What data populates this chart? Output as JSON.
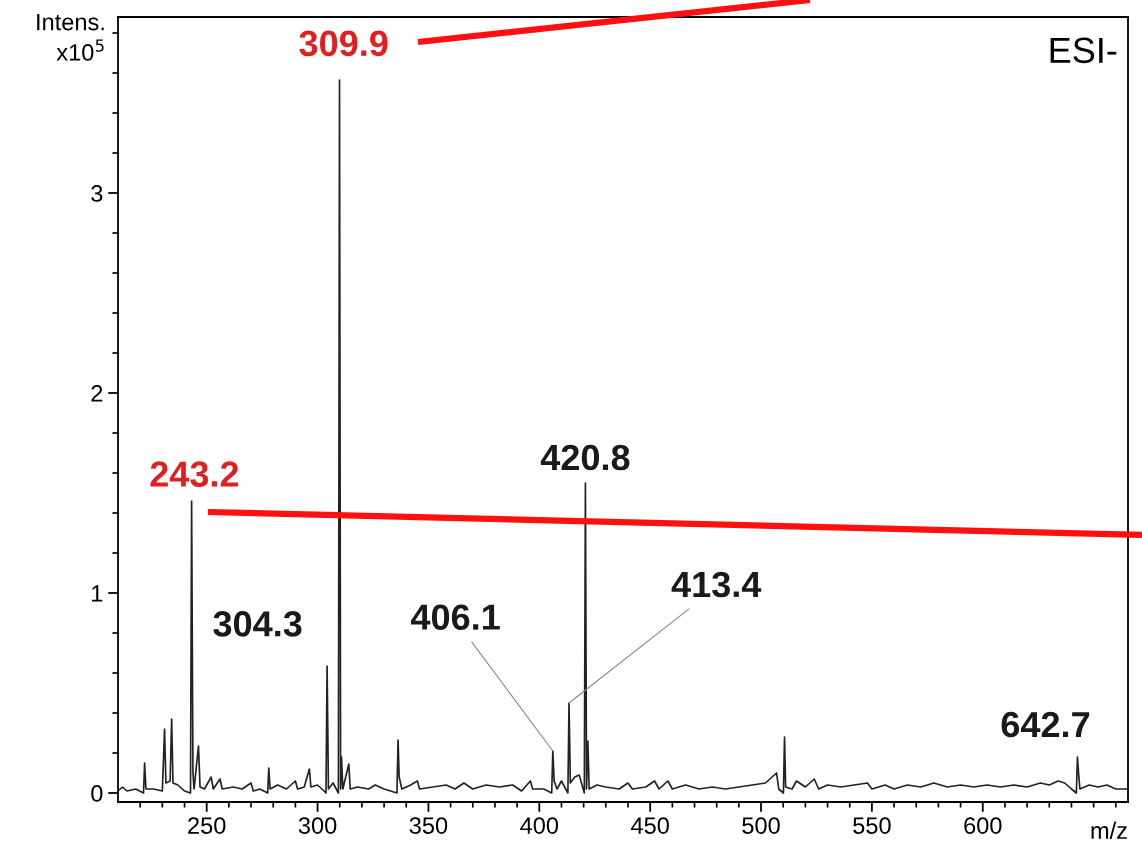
{
  "chart_data": {
    "type": "line",
    "xlabel": "m/z",
    "ylabel": "Intens.\nx10$^{5}$",
    "xlim": [
      210,
      665.5
    ],
    "ylim": [
      -0.045,
      3.88
    ],
    "xticks": [
      {
        "value": 220,
        "label": null
      },
      {
        "value": 230,
        "label": null
      },
      {
        "value": 240,
        "label": null
      },
      250,
      {
        "value": 260,
        "label": null
      },
      {
        "value": 270,
        "label": null
      },
      {
        "value": 280,
        "label": null
      },
      {
        "value": 290,
        "label": null
      },
      300,
      {
        "value": 310,
        "label": null
      },
      {
        "value": 320,
        "label": null
      },
      {
        "value": 330,
        "label": null
      },
      {
        "value": 340,
        "label": null
      },
      350,
      {
        "value": 360,
        "label": null
      },
      {
        "value": 370,
        "label": null
      },
      {
        "value": 380,
        "label": null
      },
      {
        "value": 390,
        "label": null
      },
      400,
      {
        "value": 410,
        "label": null
      },
      {
        "value": 420,
        "label": null
      },
      {
        "value": 430,
        "label": null
      },
      {
        "value": 440,
        "label": null
      },
      450,
      {
        "value": 460,
        "label": null
      },
      {
        "value": 470,
        "label": null
      },
      {
        "value": 480,
        "label": null
      },
      {
        "value": 490,
        "label": null
      },
      500,
      {
        "value": 510,
        "label": null
      },
      {
        "value": 520,
        "label": null
      },
      {
        "value": 530,
        "label": null
      },
      {
        "value": 540,
        "label": null
      },
      550,
      {
        "value": 560,
        "label": null
      },
      {
        "value": 570,
        "label": null
      },
      {
        "value": 580,
        "label": null
      },
      {
        "value": 590,
        "label": null
      },
      600,
      {
        "value": 610,
        "label": null
      },
      {
        "value": 620,
        "label": null
      },
      {
        "value": 630,
        "label": null
      },
      {
        "value": 640,
        "label": null
      },
      {
        "value": 650,
        "label": null
      },
      {
        "value": 660,
        "label": null
      }
    ],
    "yticks": [
      0,
      {
        "value": 0.2,
        "label": null
      },
      {
        "value": 0.4,
        "label": null
      },
      {
        "value": 0.6,
        "label": null
      },
      {
        "value": 0.8,
        "label": null
      },
      1,
      {
        "value": 1.2,
        "label": null
      },
      {
        "value": 1.4,
        "label": null
      },
      {
        "value": 1.6,
        "label": null
      },
      {
        "value": 1.8,
        "label": null
      },
      2,
      {
        "value": 2.2,
        "label": null
      },
      {
        "value": 2.4,
        "label": null
      },
      {
        "value": 2.6,
        "label": null
      },
      {
        "value": 2.8,
        "label": null
      },
      3,
      {
        "value": 3.2,
        "label": null
      },
      {
        "value": 3.4,
        "label": null
      },
      {
        "value": 3.6,
        "label": null
      },
      {
        "value": 3.8,
        "label": null
      }
    ],
    "grid": false,
    "marker": "none",
    "line_style": "solid",
    "series": [
      {
        "color": "#222222",
        "x": [
          210,
          212,
          214,
          218,
          221.5,
          222,
          222.6,
          226,
          230,
          231,
          231.6,
          233.5,
          234.2,
          234.8,
          237,
          240,
          242.7,
          243.2,
          243.8,
          244.3,
          246.3,
          247,
          249,
          252,
          253,
          256,
          257,
          262,
          266,
          270,
          271,
          274,
          277.5,
          278,
          278.6,
          282,
          286,
          290,
          291,
          294,
          296.3,
          297,
          300,
          302,
          303.8,
          304.3,
          304.9,
          307,
          309.4,
          309.9,
          310.4,
          310.8,
          311.4,
          314.1,
          314.7,
          318,
          323,
          326,
          330,
          335.8,
          336.3,
          336.8,
          338,
          342,
          345,
          346,
          352,
          358,
          362,
          366,
          370,
          376,
          382,
          388,
          392,
          396,
          397,
          402,
          405.6,
          406.1,
          406.7,
          408,
          410,
          412.9,
          413.4,
          414,
          416,
          418,
          420.3,
          420.8,
          421.3,
          421.9,
          422.5,
          426,
          430,
          436,
          440,
          442,
          448,
          452,
          454,
          458,
          460,
          466,
          472,
          478,
          484,
          490,
          496,
          502,
          507,
          508,
          510.1,
          510.6,
          511.1,
          514,
          516,
          520,
          524,
          526,
          530,
          536,
          542,
          548,
          550,
          556,
          560,
          566,
          572,
          578,
          584,
          590,
          596,
          602,
          608,
          614,
          620,
          626,
          630,
          634,
          637,
          640,
          642.2,
          642.7,
          643.2,
          643.8,
          648,
          652,
          656,
          660,
          665
        ],
        "values": [
          0.01,
          0.03,
          0.01,
          0.02,
          0.0,
          0.15,
          0.02,
          0.02,
          0.01,
          0.32,
          0.05,
          0.06,
          0.37,
          0.05,
          0.04,
          0.01,
          0.0,
          1.46,
          0.1,
          0.02,
          0.235,
          0.03,
          0.02,
          0.08,
          0.02,
          0.07,
          0.02,
          0.03,
          0.02,
          0.05,
          0.01,
          0.02,
          0.0,
          0.125,
          0.02,
          0.04,
          0.02,
          0.06,
          0.02,
          0.03,
          0.12,
          0.03,
          0.04,
          0.02,
          0.0,
          0.635,
          0.02,
          0.05,
          0.0,
          3.565,
          0.02,
          0.18,
          0.02,
          0.145,
          0.02,
          0.03,
          0.02,
          0.04,
          0.02,
          0.0,
          0.265,
          0.08,
          0.02,
          0.04,
          0.06,
          0.02,
          0.03,
          0.04,
          0.02,
          0.05,
          0.02,
          0.04,
          0.03,
          0.04,
          0.01,
          0.06,
          0.02,
          0.02,
          0.0,
          0.21,
          0.06,
          0.02,
          0.06,
          0.0,
          0.45,
          0.05,
          0.08,
          0.09,
          0.0,
          1.55,
          0.02,
          0.26,
          0.02,
          0.04,
          0.03,
          0.02,
          0.05,
          0.02,
          0.03,
          0.06,
          0.02,
          0.06,
          0.02,
          0.04,
          0.02,
          0.03,
          0.02,
          0.03,
          0.04,
          0.05,
          0.1,
          0.02,
          0.0,
          0.28,
          0.03,
          0.02,
          0.06,
          0.03,
          0.07,
          0.02,
          0.04,
          0.03,
          0.04,
          0.05,
          0.02,
          0.04,
          0.02,
          0.04,
          0.03,
          0.05,
          0.03,
          0.04,
          0.03,
          0.04,
          0.03,
          0.04,
          0.03,
          0.05,
          0.04,
          0.06,
          0.05,
          0.02,
          0.0,
          0.18,
          0.1,
          0.02,
          0.04,
          0.03,
          0.04,
          0.02,
          0.02
        ]
      }
    ],
    "annotations": [
      {
        "text": "309.9",
        "x": 309.9,
        "y": 3.565
      },
      {
        "text": "243.2",
        "x": 243.2,
        "y": 1.46
      },
      {
        "text": "420.8",
        "x": 420.8,
        "y": 1.55
      },
      {
        "text": "304.3",
        "x": 304.3,
        "y": 0.635
      },
      {
        "text": "406.1",
        "x": 406.1,
        "y": 0.21
      },
      {
        "text": "413.4",
        "x": 413.4,
        "y": 0.45
      },
      {
        "text": "642.7",
        "x": 642.7,
        "y": 0.18
      },
      "ESI-"
    ]
  }
}
